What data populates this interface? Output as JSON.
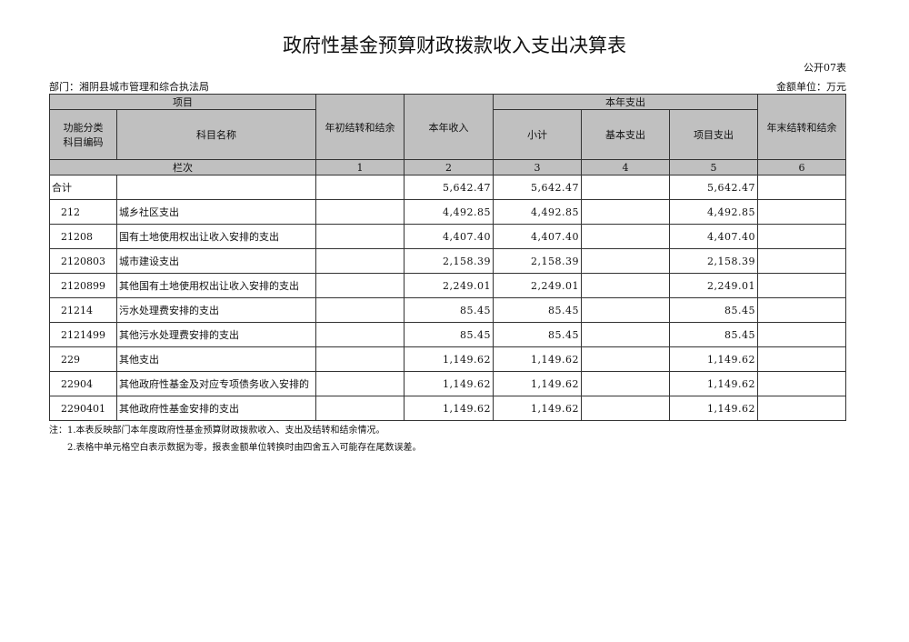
{
  "title": "政府性基金预算财政拨款收入支出决算表",
  "form_no": "公开07表",
  "department": "部门：湘阴县城市管理和综合执法局",
  "unit": "金额单位：万元",
  "headers": {
    "item": "项目",
    "code": "功能分类科目编码",
    "code_l1": "功能分类",
    "code_l2": "科目编码",
    "name": "科目名称",
    "carry_in": "年初结转和结余",
    "income": "本年收入",
    "expense": "本年支出",
    "subtotal": "小计",
    "basic": "基本支出",
    "project": "项目支出",
    "carry_out": "年末结转和结余",
    "col_index": "栏次",
    "nums": [
      "1",
      "2",
      "3",
      "4",
      "5",
      "6"
    ]
  },
  "rows": [
    {
      "code": "合计",
      "name": "",
      "carry_in": "",
      "income": "5,642.47",
      "subtotal": "5,642.47",
      "basic": "",
      "project": "5,642.47",
      "carry_out": ""
    },
    {
      "code": "212",
      "name": "城乡社区支出",
      "carry_in": "",
      "income": "4,492.85",
      "subtotal": "4,492.85",
      "basic": "",
      "project": "4,492.85",
      "carry_out": ""
    },
    {
      "code": "21208",
      "name": "国有土地使用权出让收入安排的支出",
      "carry_in": "",
      "income": "4,407.40",
      "subtotal": "4,407.40",
      "basic": "",
      "project": "4,407.40",
      "carry_out": ""
    },
    {
      "code": "2120803",
      "name": "城市建设支出",
      "carry_in": "",
      "income": "2,158.39",
      "subtotal": "2,158.39",
      "basic": "",
      "project": "2,158.39",
      "carry_out": ""
    },
    {
      "code": "2120899",
      "name": "其他国有土地使用权出让收入安排的支出",
      "carry_in": "",
      "income": "2,249.01",
      "subtotal": "2,249.01",
      "basic": "",
      "project": "2,249.01",
      "carry_out": ""
    },
    {
      "code": "21214",
      "name": "污水处理费安排的支出",
      "carry_in": "",
      "income": "85.45",
      "subtotal": "85.45",
      "basic": "",
      "project": "85.45",
      "carry_out": ""
    },
    {
      "code": "2121499",
      "name": "其他污水处理费安排的支出",
      "carry_in": "",
      "income": "85.45",
      "subtotal": "85.45",
      "basic": "",
      "project": "85.45",
      "carry_out": ""
    },
    {
      "code": "229",
      "name": "其他支出",
      "carry_in": "",
      "income": "1,149.62",
      "subtotal": "1,149.62",
      "basic": "",
      "project": "1,149.62",
      "carry_out": ""
    },
    {
      "code": "22904",
      "name": "其他政府性基金及对应专项债务收入安排的",
      "carry_in": "",
      "income": "1,149.62",
      "subtotal": "1,149.62",
      "basic": "",
      "project": "1,149.62",
      "carry_out": ""
    },
    {
      "code": "2290401",
      "name": "其他政府性基金安排的支出",
      "carry_in": "",
      "income": "1,149.62",
      "subtotal": "1,149.62",
      "basic": "",
      "project": "1,149.62",
      "carry_out": ""
    }
  ],
  "notes": [
    "注：1.本表反映部门本年度政府性基金预算财政拨款收入、支出及结转和结余情况。",
    "　　2.表格中单元格空白表示数据为零，报表金额单位转换时由四舍五入可能存在尾数误差。"
  ]
}
